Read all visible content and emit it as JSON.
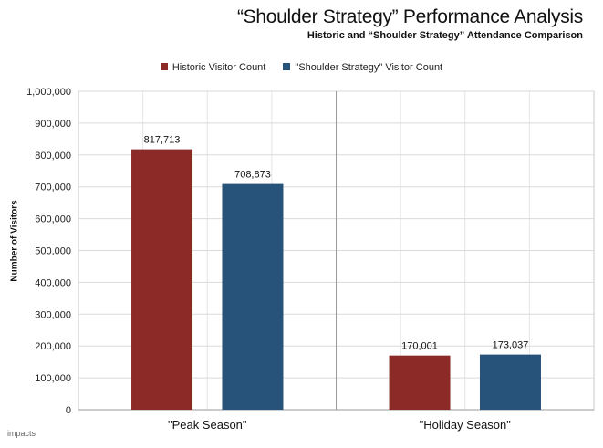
{
  "chart_data": {
    "type": "bar",
    "title": "“Shoulder Strategy” Performance Analysis",
    "subtitle": "Historic and “Shoulder Strategy” Attendance Comparison",
    "xlabel": "",
    "ylabel": "Number of Visitors",
    "categories": [
      "\"Peak Season\"",
      "\"Holiday Season\""
    ],
    "series": [
      {
        "name": "Historic Visitor Count",
        "values": [
          817713,
          170001
        ],
        "labels": [
          "817,713",
          "170,001"
        ],
        "color": "#8b2a27"
      },
      {
        "name": "\"Shoulder Strategy\" Visitor Count",
        "values": [
          708873,
          173037
        ],
        "labels": [
          "708,873",
          "173,037"
        ],
        "color": "#27527a"
      }
    ],
    "ylim": [
      0,
      1000000
    ],
    "yticks": [
      0,
      100000,
      200000,
      300000,
      400000,
      500000,
      600000,
      700000,
      800000,
      900000,
      1000000
    ],
    "yticklabels": [
      "0",
      "100,000",
      "200,000",
      "300,000",
      "400,000",
      "500,000",
      "600,000",
      "700,000",
      "800,000",
      "900,000",
      "1,000,000"
    ],
    "grid": true,
    "legend": "top-center"
  },
  "branding": {
    "text": "impacts"
  }
}
